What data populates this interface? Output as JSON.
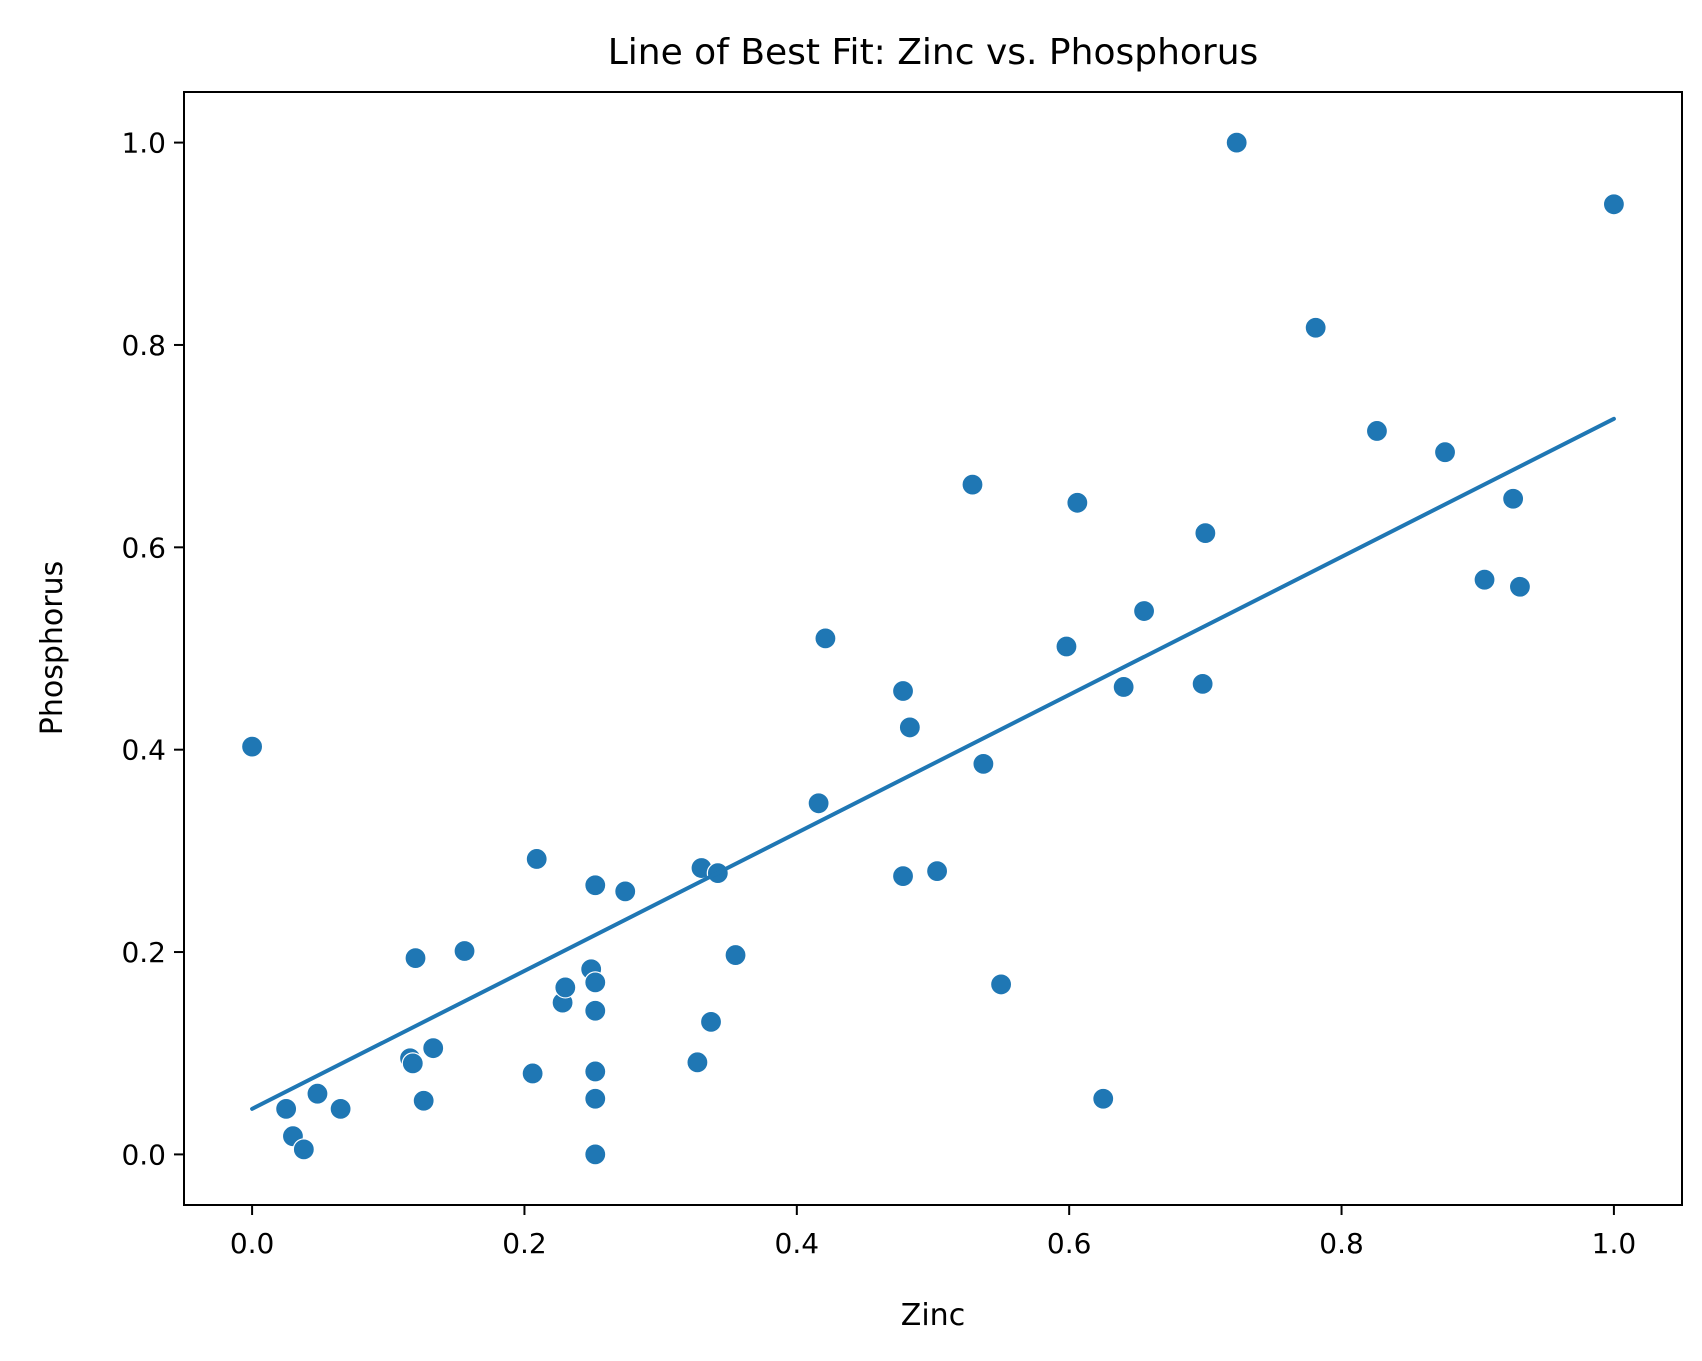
{
  "chart_data": {
    "type": "scatter",
    "title": "Line of Best Fit: Zinc vs. Phosphorus",
    "xlabel": "Zinc",
    "ylabel": "Phosphorus",
    "xlim": [
      -0.05,
      1.05
    ],
    "ylim": [
      -0.05,
      1.05
    ],
    "xticks": [
      0.0,
      0.2,
      0.4,
      0.6,
      0.8,
      1.0
    ],
    "xtick_labels": [
      "0.0",
      "0.2",
      "0.4",
      "0.6",
      "0.8",
      "1.0"
    ],
    "yticks": [
      0.0,
      0.2,
      0.4,
      0.6,
      0.8,
      1.0
    ],
    "ytick_labels": [
      "0.0",
      "0.2",
      "0.4",
      "0.6",
      "0.8",
      "1.0"
    ],
    "grid": false,
    "color": "#1f77b4",
    "points": [
      [
        0.0,
        0.403
      ],
      [
        0.025,
        0.045
      ],
      [
        0.03,
        0.018
      ],
      [
        0.038,
        0.005
      ],
      [
        0.048,
        0.06
      ],
      [
        0.065,
        0.045
      ],
      [
        0.116,
        0.095
      ],
      [
        0.118,
        0.09
      ],
      [
        0.12,
        0.194
      ],
      [
        0.126,
        0.053
      ],
      [
        0.133,
        0.105
      ],
      [
        0.156,
        0.201
      ],
      [
        0.206,
        0.08
      ],
      [
        0.209,
        0.292
      ],
      [
        0.228,
        0.15
      ],
      [
        0.23,
        0.165
      ],
      [
        0.249,
        0.183
      ],
      [
        0.252,
        0.266
      ],
      [
        0.252,
        0.17
      ],
      [
        0.252,
        0.142
      ],
      [
        0.252,
        0.082
      ],
      [
        0.252,
        0.055
      ],
      [
        0.252,
        0.0
      ],
      [
        0.274,
        0.26
      ],
      [
        0.327,
        0.091
      ],
      [
        0.33,
        0.283
      ],
      [
        0.337,
        0.131
      ],
      [
        0.342,
        0.278
      ],
      [
        0.355,
        0.197
      ],
      [
        0.416,
        0.347
      ],
      [
        0.421,
        0.51
      ],
      [
        0.478,
        0.458
      ],
      [
        0.478,
        0.275
      ],
      [
        0.483,
        0.422
      ],
      [
        0.503,
        0.28
      ],
      [
        0.529,
        0.662
      ],
      [
        0.537,
        0.386
      ],
      [
        0.55,
        0.168
      ],
      [
        0.598,
        0.502
      ],
      [
        0.606,
        0.644
      ],
      [
        0.625,
        0.055
      ],
      [
        0.64,
        0.462
      ],
      [
        0.655,
        0.537
      ],
      [
        0.698,
        0.465
      ],
      [
        0.7,
        0.614
      ],
      [
        0.723,
        1.0
      ],
      [
        0.781,
        0.817
      ],
      [
        0.826,
        0.715
      ],
      [
        0.876,
        0.694
      ],
      [
        0.905,
        0.568
      ],
      [
        0.926,
        0.648
      ],
      [
        0.931,
        0.561
      ],
      [
        1.0,
        0.939
      ]
    ],
    "fit_line": {
      "x": [
        0.0,
        1.0
      ],
      "y": [
        0.045,
        0.727
      ]
    }
  }
}
